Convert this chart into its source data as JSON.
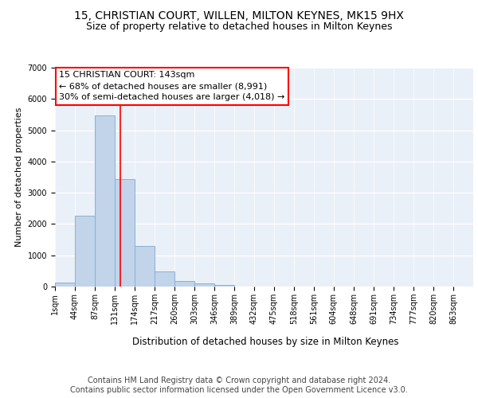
{
  "title1": "15, CHRISTIAN COURT, WILLEN, MILTON KEYNES, MK15 9HX",
  "title2": "Size of property relative to detached houses in Milton Keynes",
  "xlabel": "Distribution of detached houses by size in Milton Keynes",
  "ylabel": "Number of detached properties",
  "bar_color": "#c2d4ea",
  "bar_edge_color": "#8ab0d0",
  "annotation_line_color": "red",
  "annotation_text": "15 CHRISTIAN COURT: 143sqm\n← 68% of detached houses are smaller (8,991)\n30% of semi-detached houses are larger (4,018) →",
  "categories": [
    "1sqm",
    "44sqm",
    "87sqm",
    "131sqm",
    "174sqm",
    "217sqm",
    "260sqm",
    "303sqm",
    "346sqm",
    "389sqm",
    "432sqm",
    "475sqm",
    "518sqm",
    "561sqm",
    "604sqm",
    "648sqm",
    "691sqm",
    "734sqm",
    "777sqm",
    "820sqm",
    "863sqm"
  ],
  "bin_edges": [
    1,
    44,
    87,
    131,
    174,
    217,
    260,
    303,
    346,
    389,
    432,
    475,
    518,
    561,
    604,
    648,
    691,
    734,
    777,
    820,
    863,
    906
  ],
  "values": [
    120,
    2270,
    5480,
    3430,
    1310,
    480,
    190,
    100,
    60,
    0,
    0,
    0,
    0,
    0,
    0,
    0,
    0,
    0,
    0,
    0,
    0
  ],
  "ylim": [
    0,
    7000
  ],
  "yticks": [
    0,
    1000,
    2000,
    3000,
    4000,
    5000,
    6000,
    7000
  ],
  "background_color": "#eaf0f8",
  "footnote": "Contains HM Land Registry data © Crown copyright and database right 2024.\nContains public sector information licensed under the Open Government Licence v3.0.",
  "title1_fontsize": 10,
  "title2_fontsize": 9,
  "annotation_fontsize": 8,
  "footnote_fontsize": 7,
  "ylabel_fontsize": 8,
  "xlabel_fontsize": 8.5,
  "tick_fontsize": 7
}
